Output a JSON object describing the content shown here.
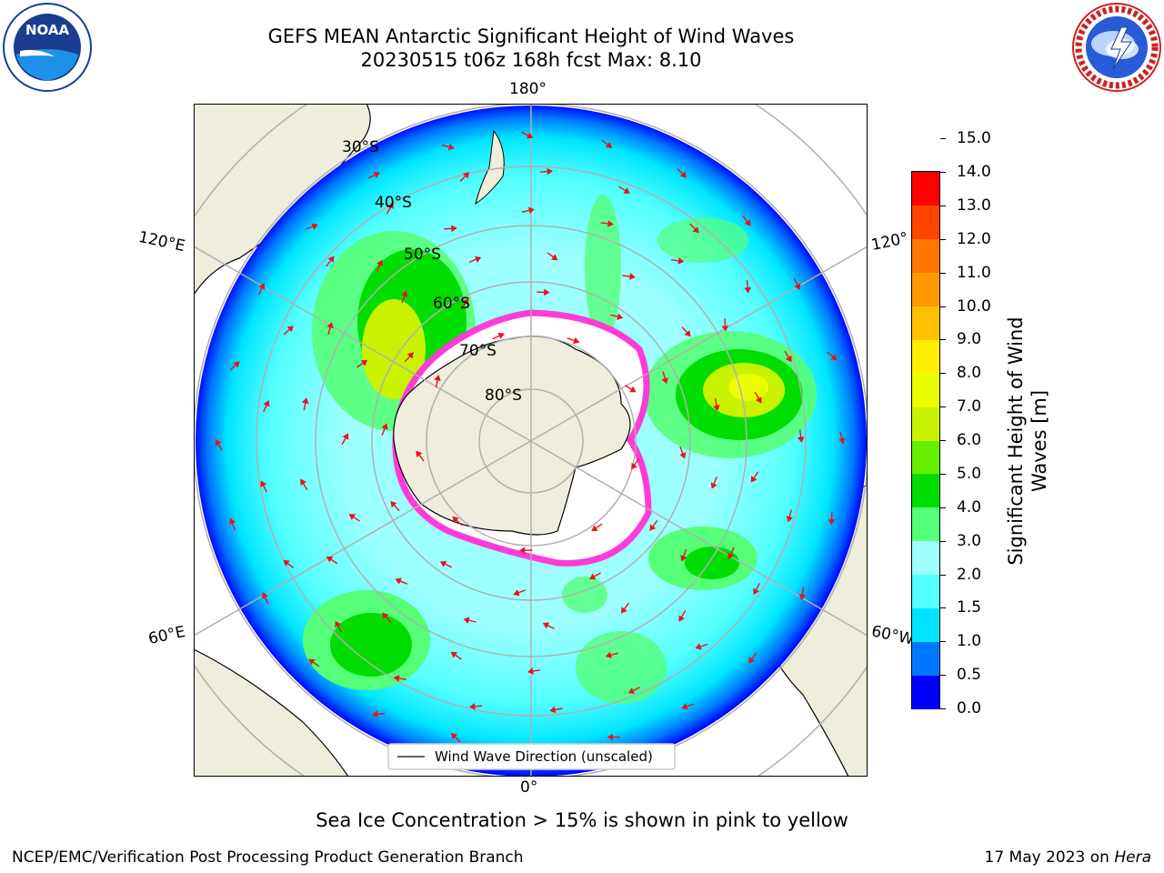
{
  "header": {
    "title_line1": "GEFS MEAN Antarctic Significant Height of Wind Waves",
    "title_line2": "20230515 t06z 168h fcst   Max: 8.10"
  },
  "logos": {
    "noaa": {
      "text": "NOAA",
      "ring_text": "NATIONAL OCEANIC AND ATMOSPHERIC ADMINISTRATION · U.S. DEPARTMENT OF COMMERCE"
    },
    "nws": {
      "ring_text": "NATIONAL WEATHER SERVICE"
    }
  },
  "map": {
    "longitude_labels": {
      "top": "180°",
      "bottom": "0°",
      "upper_left": "120°E",
      "upper_right": "120°",
      "lower_left": "60°E",
      "lower_right": "60°W"
    },
    "latitude_labels": [
      "30°S",
      "40°S",
      "50°S",
      "60°S",
      "70°S",
      "80°S"
    ],
    "legend_label": "Wind Wave Direction (unscaled)",
    "colors": {
      "land": "#efeedd",
      "ice_edge": "#ff3bd8",
      "arrows": "#e8141a"
    }
  },
  "colorbar": {
    "label": "Significant Height of Wind Waves [m]",
    "label_line1": "Significant Height of Wind",
    "label_line2": "Waves [m]",
    "ticks": [
      "0.0",
      "0.5",
      "1.0",
      "1.5",
      "2.0",
      "3.0",
      "4.0",
      "5.0",
      "6.0",
      "7.0",
      "8.0",
      "9.0",
      "10.0",
      "11.0",
      "12.0",
      "13.0",
      "14.0",
      "15.0"
    ],
    "colors": [
      "#0000ff",
      "#0077ff",
      "#00e5ff",
      "#55ffff",
      "#9effff",
      "#55ff77",
      "#00dd00",
      "#66f000",
      "#c8f200",
      "#eaff00",
      "#ffee00",
      "#ffc000",
      "#ff9900",
      "#ff7700",
      "#ff4400",
      "#ff0000"
    ]
  },
  "footer": {
    "note": "Sea Ice Concentration > 15% is shown in pink to yellow",
    "left": "NCEP/EMC/Verification Post Processing Product Generation Branch",
    "right_date": "17 May 2023 on",
    "right_machine": "Hera"
  }
}
